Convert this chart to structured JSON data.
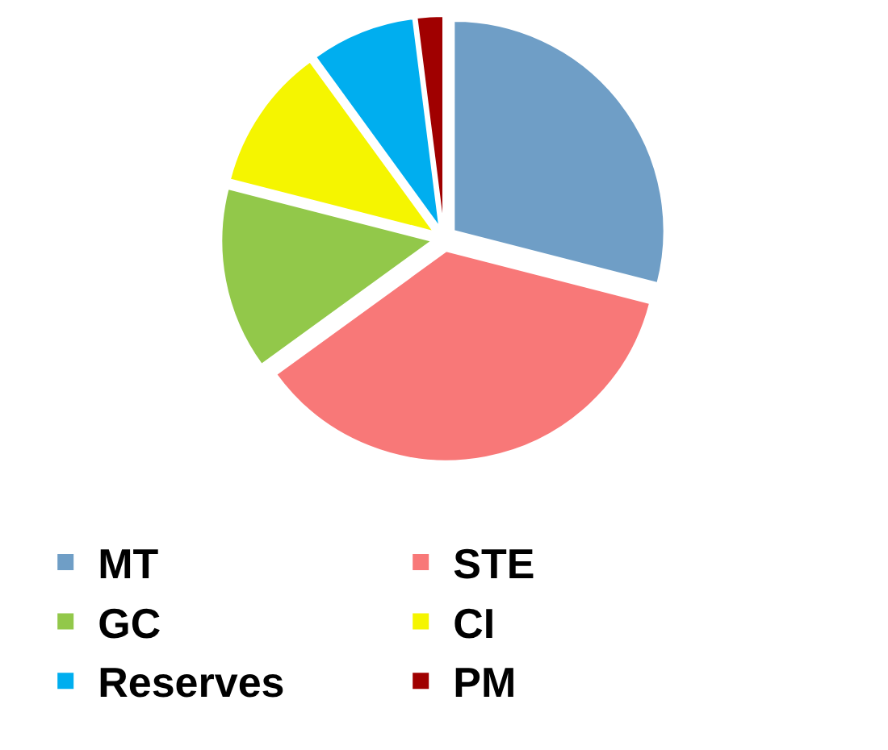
{
  "chart_data": {
    "type": "pie",
    "categories": [
      "MT",
      "STE",
      "GC",
      "CI",
      "Reserves",
      "PM"
    ],
    "values": [
      29,
      36,
      14,
      11,
      8,
      2
    ],
    "colors": [
      "#6f9ec6",
      "#f87878",
      "#92c84a",
      "#f5f500",
      "#00aeef",
      "#a00000"
    ],
    "legend": "bottom"
  }
}
